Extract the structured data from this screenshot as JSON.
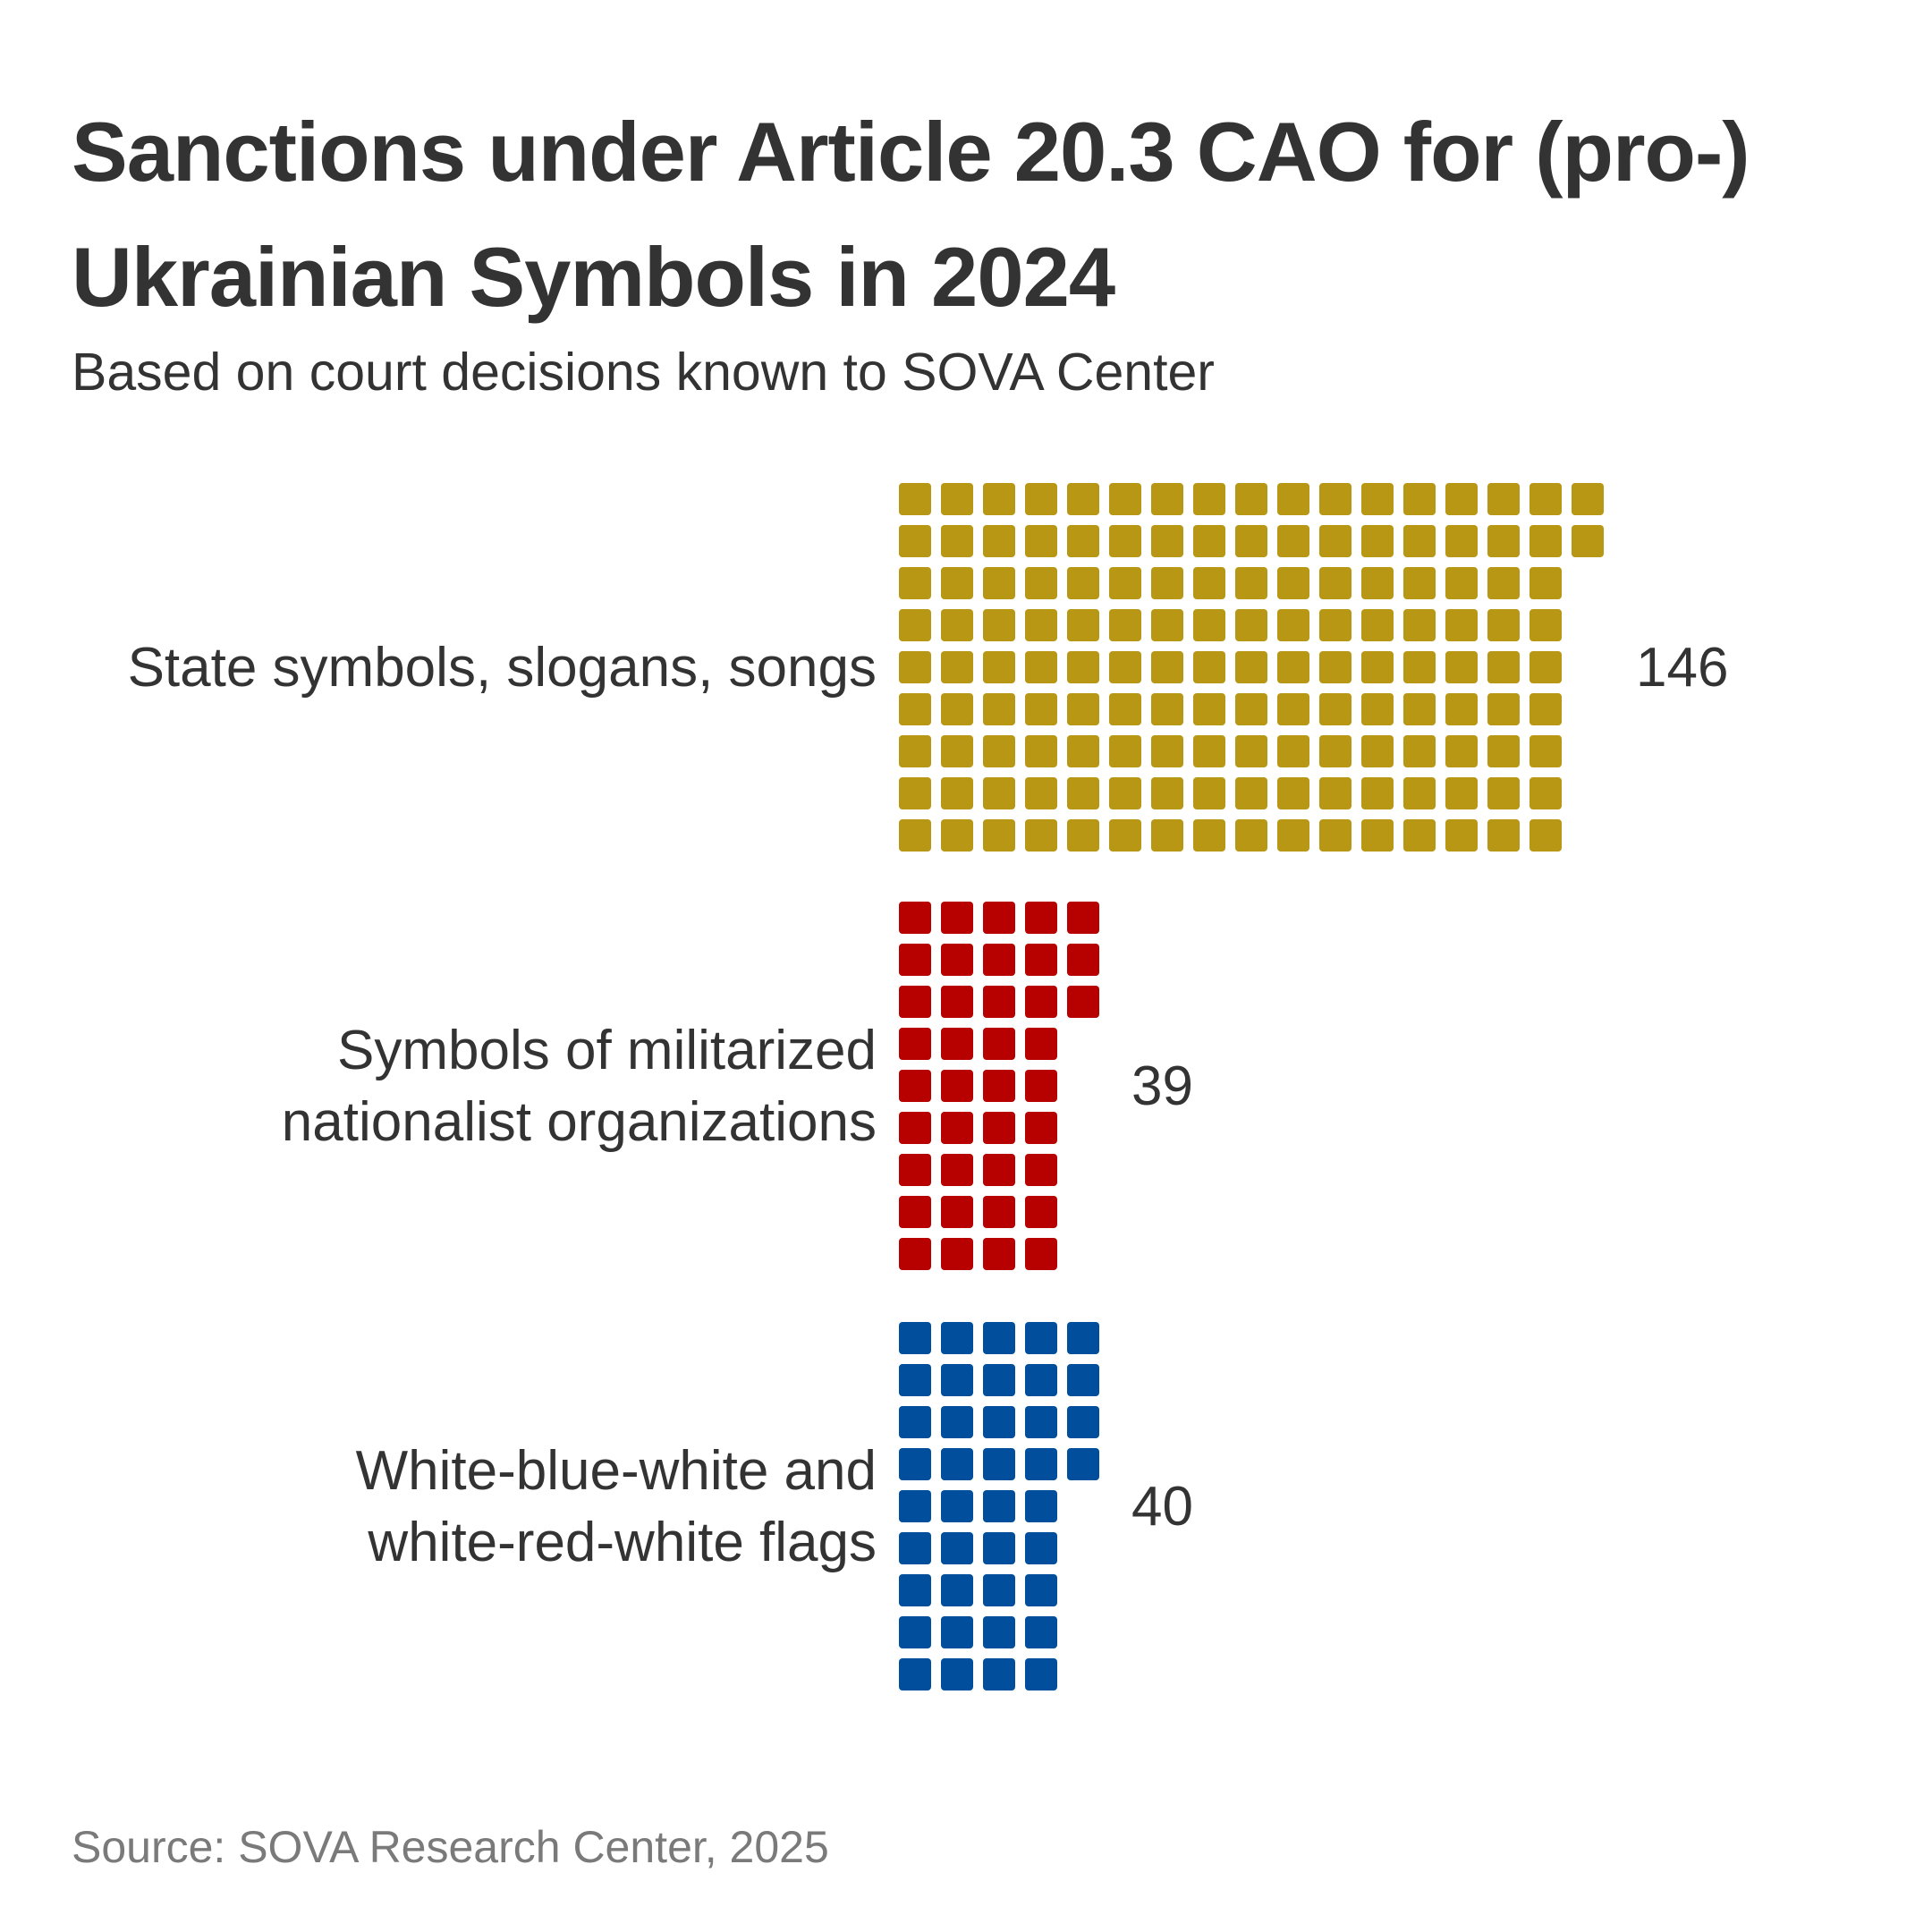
{
  "title": "Sanctions under Article 20.3 CAO for (pro-) Ukrainian Symbols in 2024",
  "subtitle": "Based on court decisions known to SOVA Center",
  "source": "Source: SOVA Research Center, 2025",
  "chart_data": {
    "type": "waffle",
    "title": "Sanctions under Article 20.3 CAO for (pro-) Ukrainian Symbols in 2024",
    "subtitle": "Based on court decisions known to SOVA Center",
    "unit": "one square = one sanction",
    "categories": [
      {
        "label_lines": [
          "State symbols, slogans, songs"
        ],
        "value": 146,
        "color": "#b79713",
        "label_text": "146"
      },
      {
        "label_lines": [
          "Symbols of militarized",
          "nationalist organizations"
        ],
        "value": 39,
        "color": "#b70000",
        "label_text": "39"
      },
      {
        "label_lines": [
          "White-blue-white and",
          "white-red-white flags"
        ],
        "value": 40,
        "color": "#004e9c",
        "label_text": "40"
      }
    ],
    "grid": false,
    "legend": "none"
  }
}
